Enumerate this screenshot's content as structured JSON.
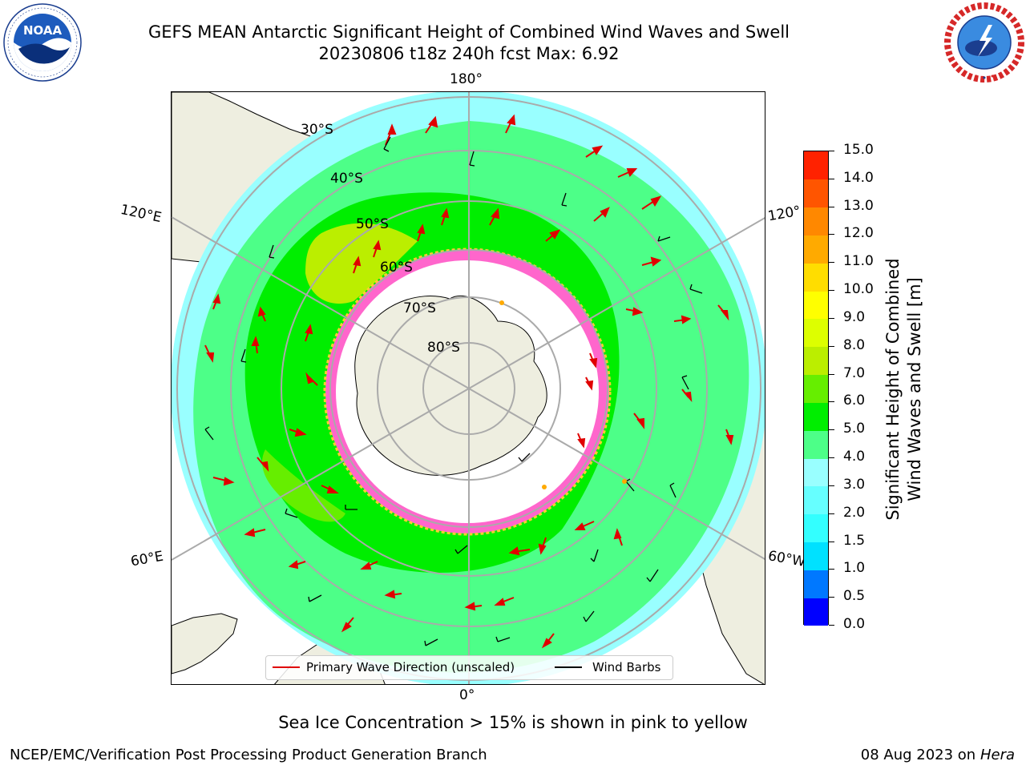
{
  "header": {
    "title_line1": "GEFS MEAN Antarctic Significant Height of Combined Wind Waves and Swell",
    "title_line2": "20230806 t18z 240h fcst   Max: 6.92"
  },
  "logos": {
    "left": {
      "text": "NOAA",
      "ring_text": "NATIONAL OCEANIC AND ATMOSPHERIC ADMINISTRATION · U.S. DEPARTMENT OF COMMERCE"
    },
    "right": {
      "ring_text": "NATIONAL WEATHER SERVICE"
    }
  },
  "map": {
    "longitude_labels": {
      "top": "180°",
      "bottom": "0°",
      "left_upper": "120°E",
      "left_lower": "60°E",
      "right_upper": "120°",
      "right_lower": "60°W"
    },
    "latitude_labels": [
      "30°S",
      "40°S",
      "50°S",
      "60°S",
      "70°S",
      "80°S"
    ]
  },
  "colorbar": {
    "label_line1": "Significant Height of Combined",
    "label_line2": "Wind Waves and Swell [m]",
    "ticks": [
      "0.0",
      "0.5",
      "1.0",
      "1.5",
      "2.0",
      "3.0",
      "4.0",
      "5.0",
      "6.0",
      "7.0",
      "8.0",
      "9.0",
      "10.0",
      "11.0",
      "12.0",
      "13.0",
      "14.0",
      "15.0"
    ],
    "colors": [
      "#0000ff",
      "#0078ff",
      "#00e1ff",
      "#33ffff",
      "#66ffff",
      "#99ffff",
      "#4dff88",
      "#00ee00",
      "#66ee00",
      "#bbee00",
      "#ddff00",
      "#ffff00",
      "#ffdd00",
      "#ffaa00",
      "#ff8800",
      "#ff5500",
      "#ff2200"
    ]
  },
  "legend": {
    "wave_direction": "Primary Wave Direction (unscaled)",
    "wind_barbs": "Wind Barbs"
  },
  "footer": {
    "note": "Sea Ice Concentration > 15% is shown in pink to yellow",
    "left": "NCEP/EMC/Verification Post Processing Product Generation Branch",
    "right_date": "08 Aug 2023 on",
    "right_machine": "Hera"
  }
}
